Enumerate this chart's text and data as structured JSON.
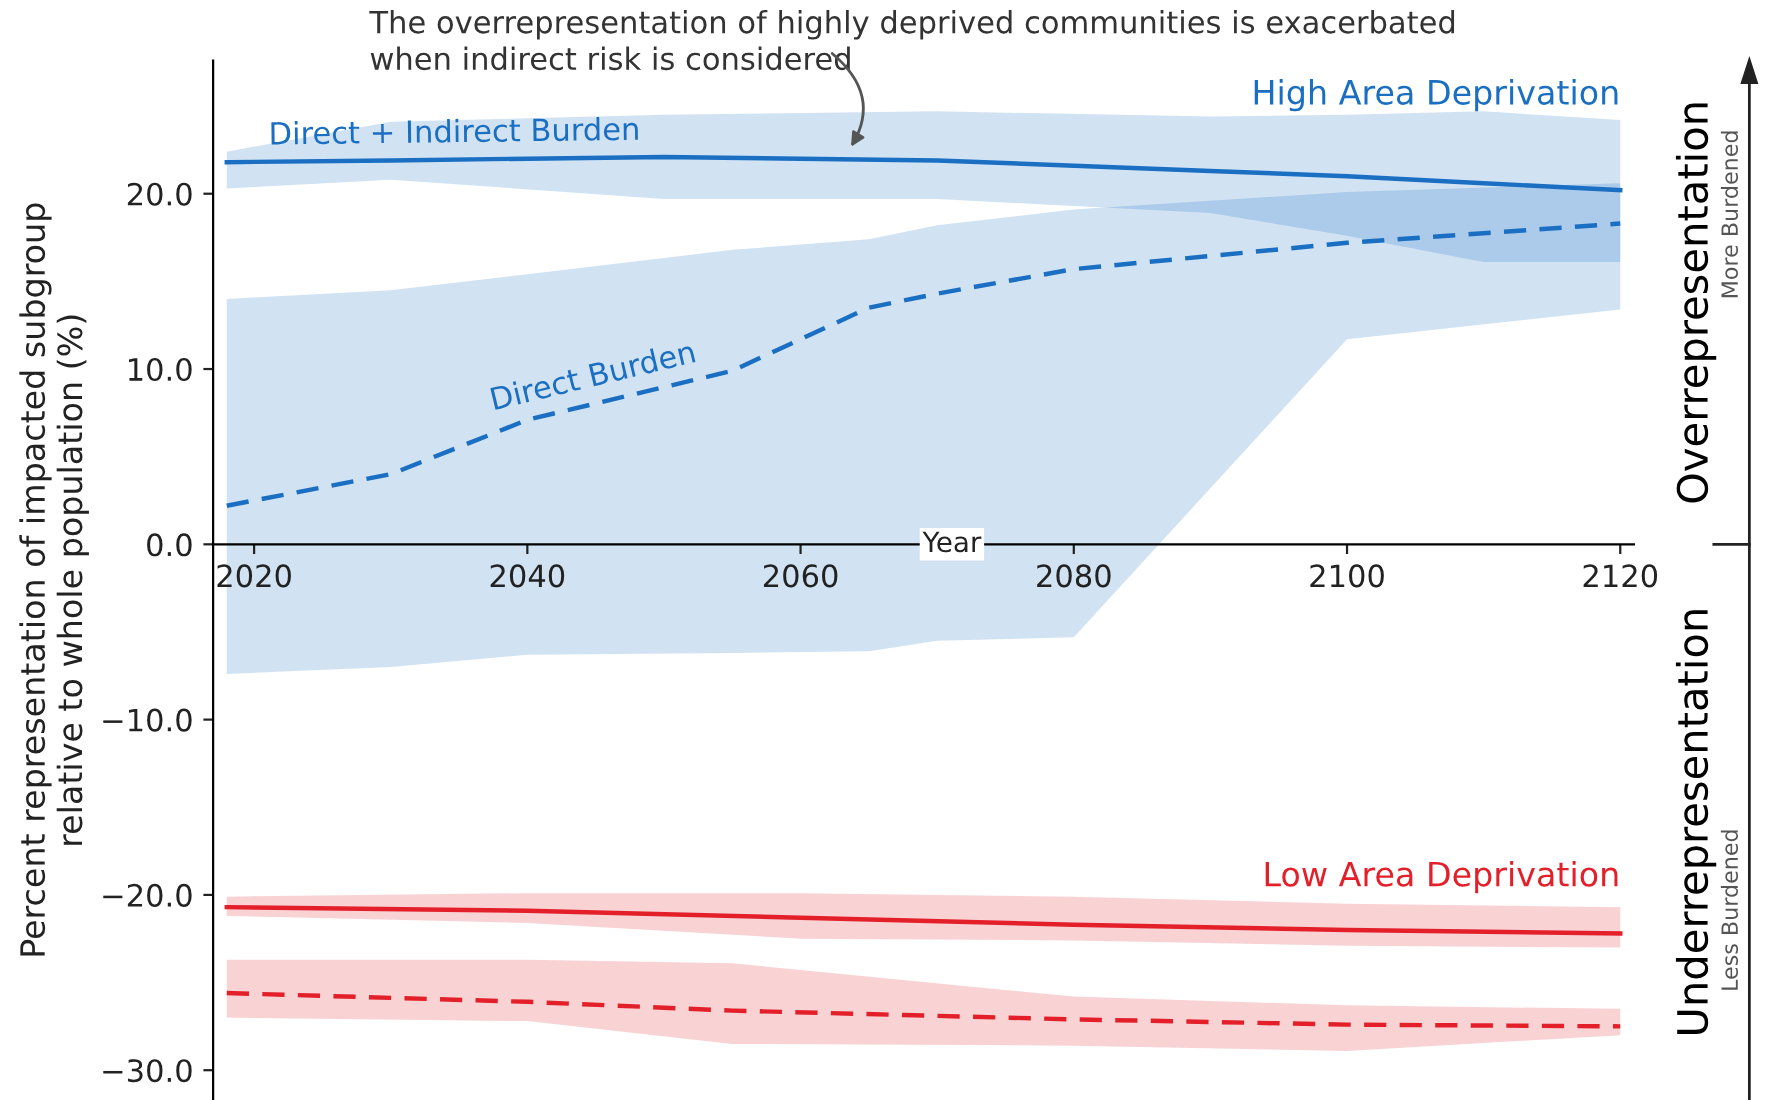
{
  "chart_data": {
    "type": "line",
    "xlabel": "Year",
    "ylabel": "Percent representation of impacted subgroup\nrelative to whole population (%)",
    "xlim": [
      2017,
      2121
    ],
    "xticks": [
      2020,
      2040,
      2060,
      2080,
      2100,
      2120
    ],
    "ylim": [
      -31.7,
      27.6
    ],
    "yticks": [
      {
        "value": 20,
        "label": "20.0"
      },
      {
        "value": 10,
        "label": "10.0"
      },
      {
        "value": 0,
        "label": "0.0"
      },
      {
        "value": -10,
        "label": "−10.0"
      },
      {
        "value": -20,
        "label": "−20.0"
      },
      {
        "value": -30,
        "label": "−30.0"
      }
    ],
    "grid": false,
    "series": [
      {
        "name": "Direct + Indirect Burden",
        "color": "#1a6fc2",
        "line_style": "solid",
        "x": [
          2018,
          2030,
          2050,
          2070,
          2090,
          2100,
          2110,
          2120
        ],
        "values": [
          21.8,
          21.9,
          22.1,
          21.9,
          21.3,
          21.0,
          20.6,
          20.2
        ],
        "lower": [
          20.3,
          20.8,
          19.7,
          19.7,
          18.9,
          17.6,
          16.1,
          16.1
        ],
        "upper": [
          22.4,
          24.1,
          24.5,
          24.7,
          24.4,
          24.5,
          24.7,
          24.2
        ]
      },
      {
        "name": "Direct Burden",
        "color": "#1a6fc2",
        "line_style": "dashed",
        "x": [
          2018,
          2030,
          2040,
          2055,
          2065,
          2070,
          2080,
          2100,
          2120
        ],
        "values": [
          2.2,
          4.0,
          7.1,
          9.9,
          13.5,
          14.3,
          15.7,
          17.2,
          18.3
        ],
        "lower": [
          -7.4,
          -7.0,
          -6.3,
          -6.2,
          -6.1,
          -5.5,
          -5.3,
          11.7,
          13.4
        ],
        "upper": [
          14.0,
          14.5,
          15.4,
          16.8,
          17.4,
          18.2,
          19.1,
          20.1,
          20.6
        ]
      },
      {
        "color": "#e3202a",
        "line_style": "solid",
        "x": [
          2018,
          2040,
          2060,
          2080,
          2100,
          2120
        ],
        "values": [
          -20.7,
          -20.9,
          -21.3,
          -21.7,
          -22.0,
          -22.2
        ],
        "lower": [
          -21.2,
          -21.6,
          -22.5,
          -22.6,
          -22.9,
          -23.0
        ],
        "upper": [
          -20.1,
          -19.9,
          -19.9,
          -20.1,
          -20.5,
          -20.7
        ]
      },
      {
        "color": "#e3202a",
        "line_style": "dashed",
        "x": [
          2018,
          2040,
          2055,
          2080,
          2100,
          2120
        ],
        "values": [
          -25.6,
          -26.1,
          -26.6,
          -27.1,
          -27.4,
          -27.5
        ],
        "lower": [
          -27.0,
          -27.2,
          -28.5,
          -28.6,
          -28.9,
          -28.0
        ],
        "upper": [
          -23.7,
          -23.7,
          -23.9,
          -25.8,
          -26.3,
          -26.5
        ]
      }
    ],
    "annotations": [
      {
        "text": "The overrepresentation of highly deprived communities is exacerbated\nwhen indirect risk is considered",
        "x": 2063,
        "y": 21.9
      },
      "High Area Deprivation",
      "Low Area Deprivation",
      "Overrepresentation",
      "Underrepresentation",
      "More Burdened",
      "Less Burdened"
    ]
  }
}
